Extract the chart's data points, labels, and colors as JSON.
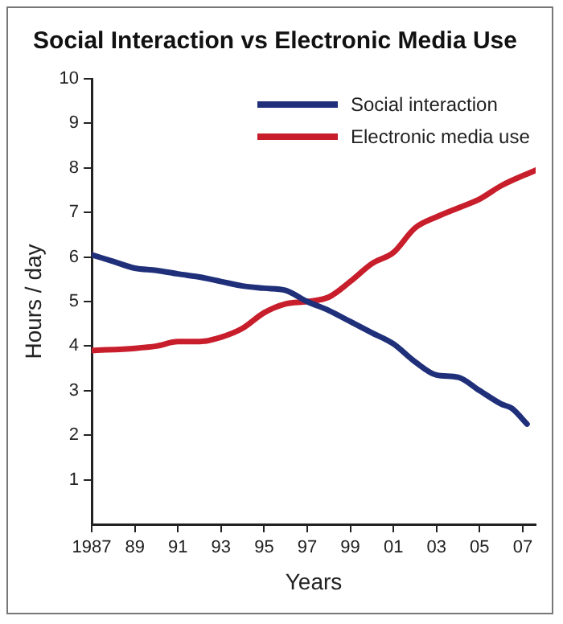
{
  "chart_data": {
    "type": "line",
    "title": "Social Interaction vs Electronic Media Use",
    "xlabel": "Years",
    "ylabel": "Hours / day",
    "xlim": [
      1987,
      2007.6
    ],
    "xticks": [
      1987,
      {
        "value": 1989,
        "label": "89"
      },
      {
        "value": 1991,
        "label": "91"
      },
      {
        "value": 1993,
        "label": "93"
      },
      {
        "value": 1995,
        "label": "95"
      },
      {
        "value": 1997,
        "label": "97"
      },
      {
        "value": 1999,
        "label": "99"
      },
      {
        "value": 2001,
        "label": "01"
      },
      {
        "value": 2003,
        "label": "03"
      },
      {
        "value": 2005,
        "label": "05"
      },
      {
        "value": 2007,
        "label": "07"
      }
    ],
    "ylim": [
      0,
      10
    ],
    "yticks": [
      1,
      2,
      3,
      4,
      5,
      6,
      7,
      8,
      9,
      10
    ],
    "grid": false,
    "legend": "top right",
    "marker": "none",
    "line_style": "solid",
    "series": [
      {
        "name": "Social interaction",
        "color": "#1f2f7a",
        "x": [
          1987,
          1988,
          1989,
          1990,
          1991,
          1992,
          1993,
          1994,
          1995,
          1996,
          1997,
          1998,
          1999,
          2000,
          2001,
          2002,
          2003,
          2004,
          2005,
          2006,
          2006.5,
          2007.2
        ],
        "values": [
          6.05,
          5.9,
          5.75,
          5.7,
          5.62,
          5.55,
          5.45,
          5.35,
          5.3,
          5.25,
          5.0,
          4.8,
          4.55,
          4.3,
          4.05,
          3.65,
          3.35,
          3.3,
          3.0,
          2.7,
          2.6,
          2.25
        ]
      },
      {
        "name": "Electronic media use",
        "color": "#c81e2b",
        "x": [
          1987,
          1989,
          1990,
          1991,
          1992,
          1993,
          1994,
          1995,
          1996,
          1997,
          1998,
          1999,
          2000,
          2001,
          2002,
          2003,
          2004,
          2005,
          2006,
          2007.6
        ],
        "values": [
          3.9,
          3.95,
          4.0,
          4.1,
          4.1,
          4.2,
          4.4,
          4.75,
          4.95,
          5.0,
          5.1,
          5.45,
          5.85,
          6.1,
          6.65,
          6.9,
          7.1,
          7.3,
          7.6,
          7.95
        ]
      }
    ]
  }
}
